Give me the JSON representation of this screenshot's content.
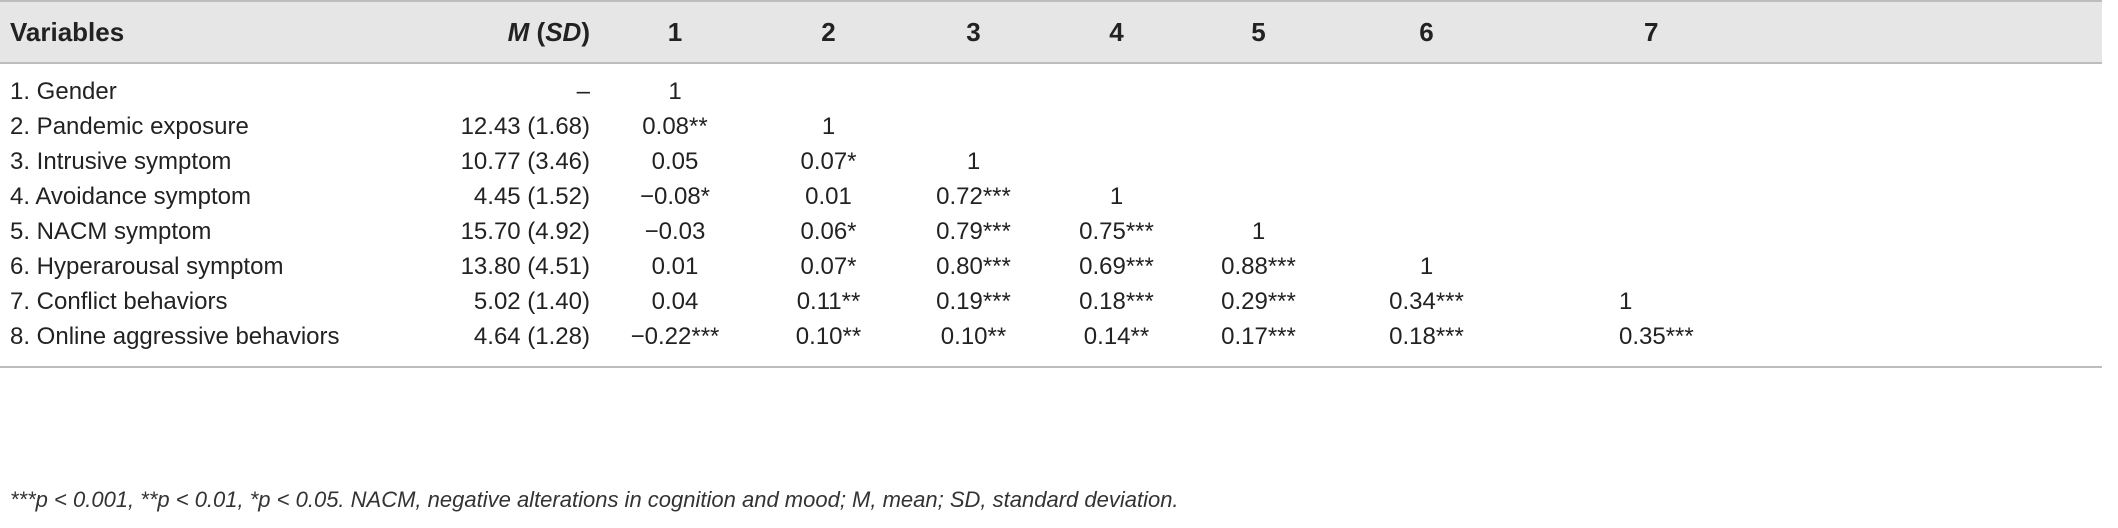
{
  "table": {
    "headers": {
      "variables": "Variables",
      "m": "M",
      "sd": "SD",
      "cols": [
        "1",
        "2",
        "3",
        "4",
        "5",
        "6",
        "7"
      ]
    },
    "rows": [
      {
        "label": "1. Gender",
        "msd": "–",
        "cells": [
          "1",
          "",
          "",
          "",
          "",
          "",
          ""
        ]
      },
      {
        "label": "2. Pandemic exposure",
        "msd": "12.43 (1.68)",
        "cells": [
          "0.08**",
          "1",
          "",
          "",
          "",
          "",
          ""
        ]
      },
      {
        "label": "3. Intrusive symptom",
        "msd": "10.77 (3.46)",
        "cells": [
          "0.05",
          "0.07*",
          "1",
          "",
          "",
          "",
          ""
        ]
      },
      {
        "label": "4. Avoidance symptom",
        "msd": "4.45 (1.52)",
        "cells": [
          "−0.08*",
          "0.01",
          "0.72***",
          "1",
          "",
          "",
          ""
        ]
      },
      {
        "label": "5. NACM symptom",
        "msd": "15.70 (4.92)",
        "cells": [
          "−0.03",
          "0.06*",
          "0.79***",
          "0.75***",
          "1",
          "",
          ""
        ]
      },
      {
        "label": "6. Hyperarousal symptom",
        "msd": "13.80 (4.51)",
        "cells": [
          "0.01",
          "0.07*",
          "0.80***",
          "0.69***",
          "0.88***",
          "1",
          ""
        ]
      },
      {
        "label": "7. Conflict behaviors",
        "msd": "5.02 (1.40)",
        "cells": [
          "0.04",
          "0.11**",
          "0.19***",
          "0.18***",
          "0.29***",
          "0.34***",
          "1"
        ]
      },
      {
        "label": "8. Online aggressive behaviors",
        "msd": "4.64 (1.28)",
        "cells": [
          "−0.22***",
          "0.10**",
          "0.10**",
          "0.14**",
          "0.17***",
          "0.18***",
          "0.35***"
        ]
      }
    ]
  },
  "footnote": "***p < 0.001, **p < 0.01, *p < 0.05. NACM, negative alterations in cognition and mood; M, mean; SD, standard deviation."
}
